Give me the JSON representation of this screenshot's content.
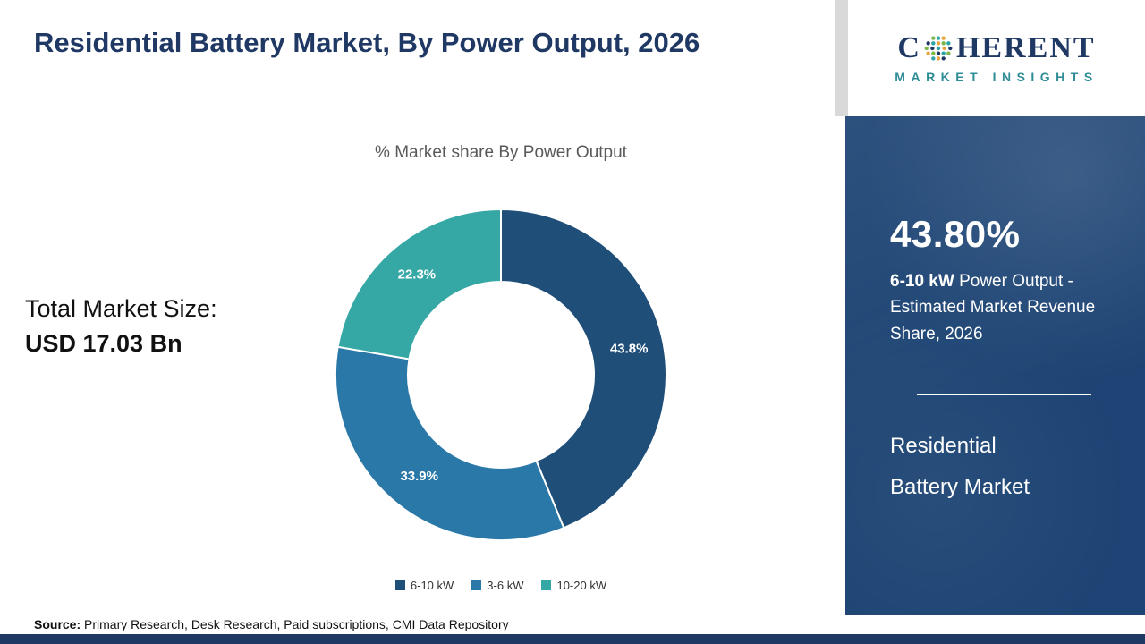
{
  "header": {
    "title": "Residential Battery Market, By Power Output, 2026"
  },
  "logo": {
    "wordmark_start": "C",
    "wordmark_end": "HERENT",
    "subtitle": "MARKET INSIGHTS"
  },
  "left": {
    "total_label": "Total Market Size:",
    "total_value": "USD 17.03 Bn"
  },
  "sidebar": {
    "stat_value": "43.80%",
    "stat_bold": "6-10 kW",
    "stat_rest": " Power Output - Estimated Market Revenue Share, 2026",
    "product_line1": "Residential",
    "product_line2": "Battery Market"
  },
  "footer": {
    "source_label": "Source:",
    "source_text": " Primary Research, Desk Research, Paid subscriptions, CMI Data Repository"
  },
  "chart_data": {
    "type": "pie",
    "donut": true,
    "title": "% Market share By Power Output",
    "categories": [
      "6-10 kW",
      "3-6 kW",
      "10-20 kW"
    ],
    "values": [
      43.8,
      33.9,
      22.3
    ],
    "labels": [
      "43.8%",
      "33.9%",
      "22.3%"
    ],
    "colors": [
      "#1f4e79",
      "#2a78a8",
      "#35a8a6"
    ],
    "start_angle_deg": 0,
    "direction": "clockwise",
    "legend_position": "bottom",
    "outer_radius": 185,
    "inner_radius": 104,
    "total_market_size": "USD 17.03 Bn"
  }
}
